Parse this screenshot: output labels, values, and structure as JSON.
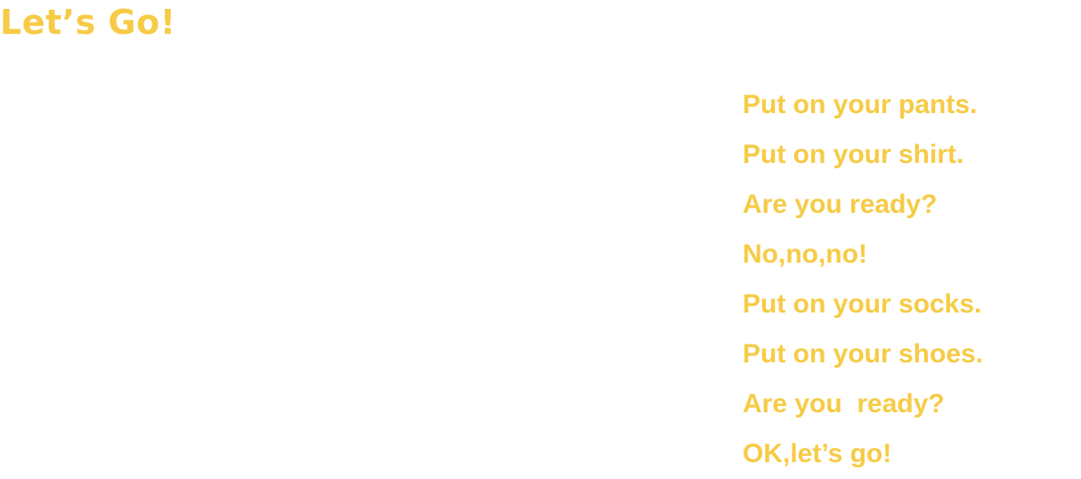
{
  "title": "Let’s Go!",
  "lyrics": [
    "Put on your pants.",
    "Put on your shirt.",
    "Are you ready?",
    "No,no,no!",
    "Put on your socks.",
    "Put on your shoes.",
    "Are you  ready?",
    "OK,let’s go!"
  ],
  "colors": {
    "text": "#f6cb45",
    "background": "#ffffff"
  }
}
